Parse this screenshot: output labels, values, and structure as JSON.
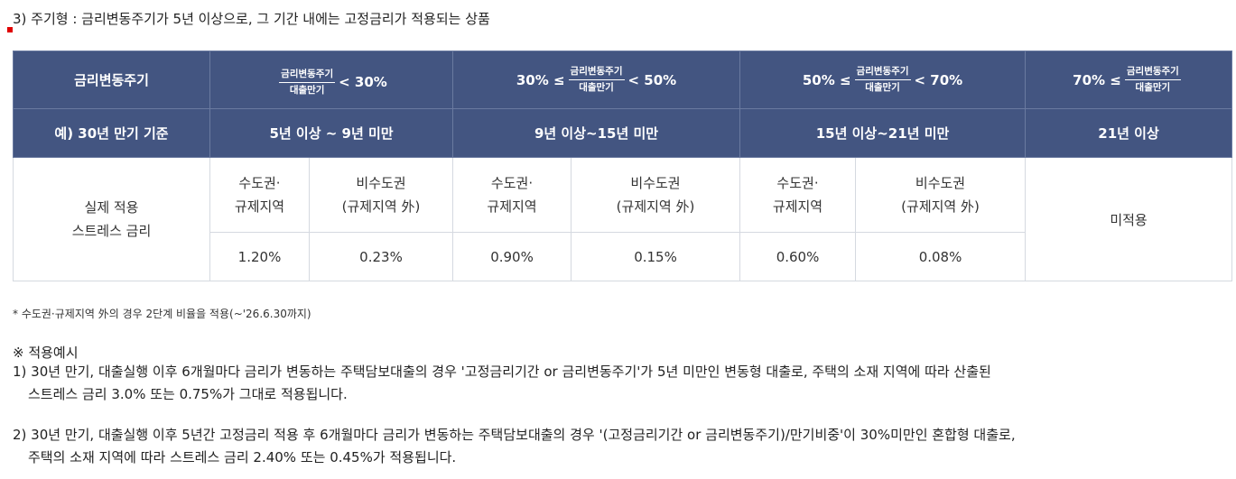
{
  "heading": "3) 주기형 : 금리변동주기가 5년 이상으로, 그 기간 내에는 고정금리가 적용되는 상품",
  "table": {
    "header1": {
      "label": "금리변동주기",
      "frac_num": "금리변동주기",
      "frac_den": "대출만기",
      "c1_suffix": "< 30%",
      "c2_prefix": "30% ≤",
      "c2_suffix": "< 50%",
      "c3_prefix": "50% ≤",
      "c3_suffix": "< 70%",
      "c4_prefix": "70% ≤"
    },
    "header2": {
      "label": "예) 30년 만기 기준",
      "c1": "5년 이상 ~ 9년 미만",
      "c2": "9년 이상~15년 미만",
      "c3": "15년 이상~21년 미만",
      "c4": "21년 이상"
    },
    "row_label_line1": "실제 적용",
    "row_label_line2": "스트레스 금리",
    "metro_line1": "수도권·",
    "metro_line2": "규제지역",
    "nonmetro_line1": "비수도권",
    "nonmetro_line2": "(규제지역 外)",
    "values": [
      "1.20%",
      "0.23%",
      "0.90%",
      "0.15%",
      "0.60%",
      "0.08%"
    ],
    "not_applied": "미적용"
  },
  "footnote": "* 수도권·규제지역 外의 경우 2단계 비율을 적용(~'26.6.30까지)",
  "examples": {
    "title": "※ 적용예시",
    "ex1_line1": "1) 30년 만기, 대출실행 이후 6개월마다 금리가 변동하는 주택담보대출의 경우 '고정금리기간 or 금리변동주기'가 5년 미만인 변동형 대출로, 주택의 소재 지역에 따라 산출된",
    "ex1_line2": "스트레스 금리 3.0% 또는 0.75%가 그대로 적용됩니다.",
    "ex2_line1": "2) 30년 만기, 대출실행 이후 5년간 고정금리 적용 후 6개월마다 금리가 변동하는 주택담보대출의 경우 '(고정금리기간 or 금리변동주기)/만기비중'이 30%미만인 혼합형 대출로,",
    "ex2_line2": "주택의 소재 지역에 따라 스트레스 금리 2.40% 또는 0.45%가 적용됩니다."
  },
  "colors": {
    "header_bg": "#435581",
    "marker": "#e00000"
  }
}
